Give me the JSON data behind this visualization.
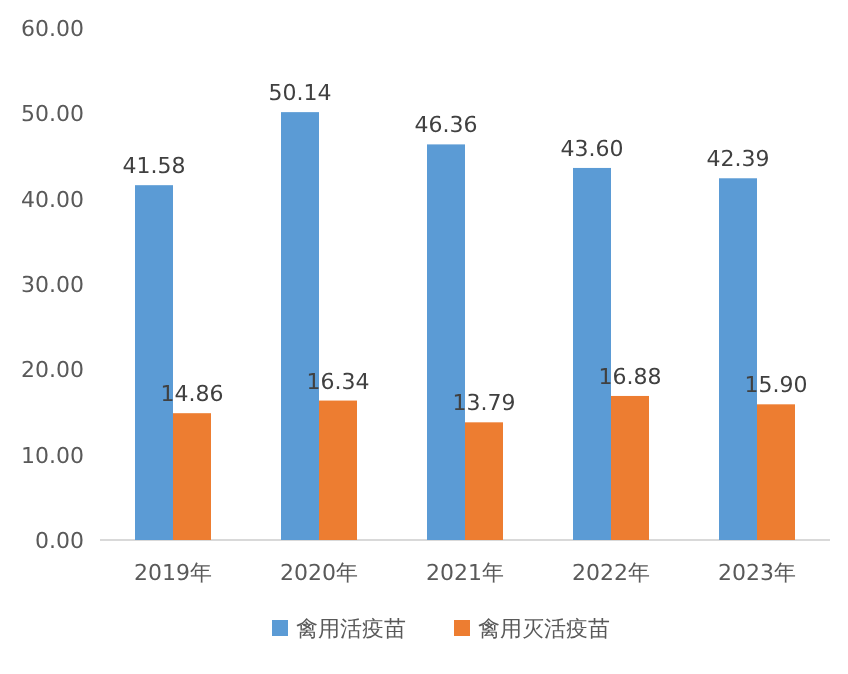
{
  "chart_data": {
    "type": "bar",
    "categories": [
      "2019年",
      "2020年",
      "2021年",
      "2022年",
      "2023年"
    ],
    "series": [
      {
        "name": "禽用活疫苗",
        "color": "#5b9bd5",
        "values": [
          41.58,
          50.14,
          46.36,
          43.6,
          42.39
        ],
        "value_labels": [
          "41.58",
          "50.14",
          "46.36",
          "43.60",
          "42.39"
        ]
      },
      {
        "name": "禽用灭活疫苗",
        "color": "#ed7d31",
        "values": [
          14.86,
          16.34,
          13.79,
          16.88,
          15.9
        ],
        "value_labels": [
          "14.86",
          "16.34",
          "13.79",
          "16.88",
          "15.90"
        ]
      }
    ],
    "ylim": [
      0,
      60
    ],
    "yticks": [
      {
        "value": 0,
        "label": "0.00"
      },
      {
        "value": 10,
        "label": "10.00"
      },
      {
        "value": 20,
        "label": "20.00"
      },
      {
        "value": 30,
        "label": "30.00"
      },
      {
        "value": 40,
        "label": "40.00"
      },
      {
        "value": 50,
        "label": "50.00"
      },
      {
        "value": 60,
        "label": "60.00"
      }
    ],
    "legend": "bottom"
  }
}
